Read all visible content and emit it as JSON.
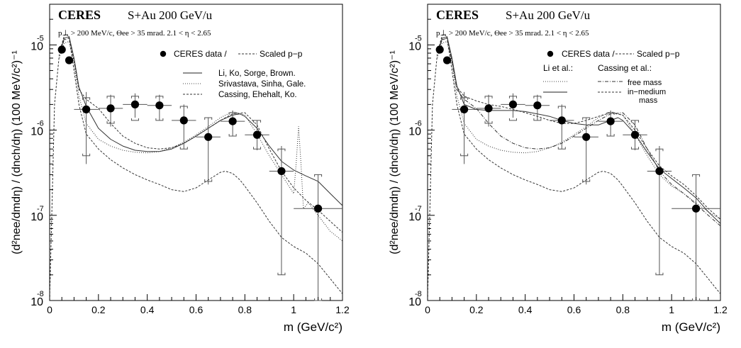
{
  "chart_data": [
    {
      "type": "line",
      "experiment": "CERES",
      "system": "S+Au 200 GeV/u",
      "cuts": "p⊥ > 200 MeV/c, Θee > 35 mrad. 2.1 < η < 2.65",
      "xlabel": "m (GeV/c²)",
      "ylabel": "(d²nee/dmdη) / (dnch/dη) (100 MeV/c²)⁻¹",
      "xlim": [
        0,
        1.2
      ],
      "ylim": [
        1e-08,
        3e-05
      ],
      "yscale": "log",
      "x_ticks": [
        "0",
        "0.2",
        "0.4",
        "0.6",
        "0.8",
        "1",
        "1.2"
      ],
      "y_ticks": [
        {
          "value": 1e-05,
          "base": "10",
          "exp": "-5"
        },
        {
          "value": 1e-06,
          "base": "10",
          "exp": "-6"
        },
        {
          "value": 1e-07,
          "base": "10",
          "exp": "-7"
        },
        {
          "value": 1e-08,
          "base": "10",
          "exp": "-8"
        }
      ],
      "legend": [
        {
          "label": "CERES data /",
          "marker": "dot"
        },
        {
          "label": "Scaled p−p",
          "style": "dashed"
        },
        {
          "label": "Li, Ko, Sorge, Brown.",
          "style": "solid"
        },
        {
          "label": "Srivastava, Sinha, Gale.",
          "style": "dotted"
        },
        {
          "label": "Cassing, Ehehalt, Ko.",
          "style": "dashed"
        }
      ],
      "data_points": [
        {
          "x": 0.05,
          "y": 8.8e-06,
          "xerr": 0.0,
          "ylo": 8.8e-06,
          "yhi": 8.8e-06
        },
        {
          "x": 0.08,
          "y": 6.6e-06,
          "xerr": 0.0,
          "ylo": 6.6e-06,
          "yhi": 6.6e-06
        },
        {
          "x": 0.15,
          "y": 1.75e-06,
          "xerr": 0.05,
          "ylo": 4e-07,
          "yhi": 2.8e-06,
          "cap_lo": 5e-07,
          "cap_hi": 2.4e-06
        },
        {
          "x": 0.25,
          "y": 1.8e-06,
          "xerr": 0.05,
          "ylo": 1.1e-06,
          "yhi": 2.6e-06,
          "cap_lo": 1.2e-06,
          "cap_hi": 2.5e-06
        },
        {
          "x": 0.35,
          "y": 2e-06,
          "xerr": 0.05,
          "ylo": 1.4e-06,
          "yhi": 2.7e-06,
          "cap_lo": 1.3e-06,
          "cap_hi": 2.5e-06
        },
        {
          "x": 0.45,
          "y": 1.95e-06,
          "xerr": 0.05,
          "ylo": 1.3e-06,
          "yhi": 2.6e-06,
          "cap_lo": 1.3e-06,
          "cap_hi": 2.5e-06
        },
        {
          "x": 0.55,
          "y": 1.3e-06,
          "xerr": 0.05,
          "ylo": 6e-07,
          "yhi": 2e-06,
          "cap_lo": 6e-07,
          "cap_hi": 1.9e-06
        },
        {
          "x": 0.65,
          "y": 8.3e-07,
          "xerr": 0.05,
          "ylo": 2.3e-07,
          "yhi": 1.4e-06,
          "cap_lo": 2.5e-07,
          "cap_hi": 1.4e-06
        },
        {
          "x": 0.75,
          "y": 1.27e-06,
          "xerr": 0.05,
          "ylo": 8.5e-07,
          "yhi": 1.7e-06,
          "cap_lo": 8.5e-07,
          "cap_hi": 1.6e-06
        },
        {
          "x": 0.85,
          "y": 8.8e-07,
          "xerr": 0.05,
          "ylo": 5.8e-07,
          "yhi": 1.3e-06,
          "cap_lo": 6e-07,
          "cap_hi": 1.3e-06
        },
        {
          "x": 0.95,
          "y": 3.3e-07,
          "xerr": 0.05,
          "ylo": 2e-08,
          "yhi": 6.5e-07,
          "cap_lo": 2e-08,
          "cap_hi": 6e-07
        },
        {
          "x": 1.1,
          "y": 1.2e-07,
          "xerr": 0.1,
          "ylo": 1e-08,
          "yhi": 3e-07,
          "cap_lo": 1e-08,
          "cap_hi": 3e-07
        }
      ],
      "series": [
        {
          "style": "dashed",
          "x": [
            0.0,
            0.02,
            0.04,
            0.06,
            0.07,
            0.08,
            0.1,
            0.12,
            0.15,
            0.2,
            0.25,
            0.3,
            0.35,
            0.4,
            0.45,
            0.5,
            0.55,
            0.6,
            0.65,
            0.7,
            0.72,
            0.75,
            0.78,
            0.8,
            0.85,
            0.9,
            0.95,
            1.0,
            1.05,
            1.1,
            1.15,
            1.2
          ],
          "y": [
            1e-08,
            2e-06,
            8e-06,
            1.3e-05,
            1.35e-05,
            1.2e-05,
            5e-06,
            2e-06,
            9e-07,
            6e-07,
            4.5e-07,
            3.6e-07,
            3e-07,
            2.6e-07,
            2.3e-07,
            2e-07,
            1.9e-07,
            2.1e-07,
            2.6e-07,
            3.2e-07,
            3.3e-07,
            3.1e-07,
            2.6e-07,
            2.2e-07,
            1.4e-07,
            8.5e-08,
            5.5e-08,
            4.3e-08,
            3.6e-08,
            2.7e-08,
            1.8e-08,
            1.2e-08
          ]
        },
        {
          "style": "solid",
          "x": [
            0.04,
            0.06,
            0.08,
            0.1,
            0.12,
            0.15,
            0.2,
            0.25,
            0.3,
            0.35,
            0.4,
            0.45,
            0.5,
            0.55,
            0.6,
            0.65,
            0.7,
            0.75,
            0.78,
            0.8,
            0.85,
            0.9,
            0.95,
            1.0,
            1.05,
            1.1,
            1.15,
            1.2
          ],
          "y": [
            8e-06,
            1.2e-05,
            1.25e-05,
            7e-06,
            3.2e-06,
            1.9e-06,
            1.05e-06,
            7.8e-07,
            6.5e-07,
            5.8e-07,
            5.6e-07,
            5.6e-07,
            6e-07,
            7e-07,
            8.5e-07,
            1.05e-06,
            1.3e-06,
            1.5e-06,
            1.55e-06,
            1.45e-06,
            1.05e-06,
            6.5e-07,
            4.3e-07,
            3.4e-07,
            2.9e-07,
            2.5e-07,
            1.8e-07,
            1.3e-07
          ]
        },
        {
          "style": "dotted",
          "x": [
            0.04,
            0.06,
            0.08,
            0.1,
            0.12,
            0.15,
            0.2,
            0.25,
            0.3,
            0.35,
            0.4,
            0.45,
            0.5,
            0.55,
            0.6,
            0.65,
            0.7,
            0.75,
            0.8,
            0.85,
            0.9,
            0.95,
            1.0,
            1.01,
            1.02,
            1.03,
            1.04,
            1.06,
            1.1,
            1.15,
            1.2
          ],
          "y": [
            7e-06,
            1.05e-05,
            1.1e-05,
            6e-06,
            2.5e-06,
            1.2e-06,
            7.8e-07,
            6.5e-07,
            5.8e-07,
            5.5e-07,
            5.4e-07,
            5.6e-07,
            6.2e-07,
            7.2e-07,
            8.8e-07,
            1.1e-06,
            1.4e-06,
            1.65e-06,
            1.5e-06,
            9e-07,
            5e-07,
            3e-07,
            1.8e-07,
            4e-07,
            1.1e-06,
            4e-07,
            1.2e-07,
            1.4e-07,
            1e-07,
            6.5e-08,
            5e-08
          ]
        },
        {
          "style": "dashed",
          "x": [
            0.04,
            0.06,
            0.08,
            0.1,
            0.12,
            0.15,
            0.2,
            0.25,
            0.3,
            0.35,
            0.4,
            0.45,
            0.5,
            0.55,
            0.6,
            0.65,
            0.7,
            0.75,
            0.8,
            0.85,
            0.9,
            0.95,
            1.0,
            1.05,
            1.1,
            1.15,
            1.2
          ],
          "y": [
            8e-06,
            1.15e-05,
            1.2e-05,
            6.5e-06,
            3e-06,
            2.3e-06,
            1.8e-06,
            1.2e-06,
            8.5e-07,
            7e-07,
            6.2e-07,
            6e-07,
            6.2e-07,
            7e-07,
            8.5e-07,
            1.05e-06,
            1.3e-06,
            1.55e-06,
            1.6e-06,
            1.15e-06,
            6e-07,
            3.3e-07,
            2.1e-07,
            1.5e-07,
            1.15e-07,
            8.5e-08,
            6.3e-08
          ]
        }
      ]
    },
    {
      "type": "line",
      "experiment": "CERES",
      "system": "S+Au 200 GeV/u",
      "cuts": "p⊥ > 200 MeV/c, Θee > 35 mrad. 2.1 < η < 2.65",
      "xlabel": "m (GeV/c²)",
      "ylabel": "(d²nee/dmdη) / (dnch/dη) (100 MeV/c²)⁻¹",
      "xlim": [
        0,
        1.2
      ],
      "ylim": [
        1e-08,
        3e-05
      ],
      "yscale": "log",
      "x_ticks": [
        "0",
        "0.2",
        "0.4",
        "0.6",
        "0.8",
        "1",
        "1.2"
      ],
      "y_ticks": [
        {
          "value": 1e-05,
          "base": "10",
          "exp": "-5"
        },
        {
          "value": 1e-06,
          "base": "10",
          "exp": "-6"
        },
        {
          "value": 1e-07,
          "base": "10",
          "exp": "-7"
        },
        {
          "value": 1e-08,
          "base": "10",
          "exp": "-8"
        }
      ],
      "legend": [
        {
          "label": "CERES data /",
          "marker": "dot"
        },
        {
          "label": "Scaled p−p",
          "style": "dashed"
        },
        {
          "label": "Li et al.:",
          "style": "header"
        },
        {
          "label": "Cassing et al.:",
          "style": "header"
        },
        {
          "label": "free mass",
          "style": "dotted / dashdot"
        },
        {
          "label": "in−medium",
          "style": "solid / dashed"
        },
        {
          "label": "mass",
          "style": "text"
        }
      ],
      "data_points": [
        {
          "x": 0.05,
          "y": 8.8e-06,
          "xerr": 0.0,
          "ylo": 8.8e-06,
          "yhi": 8.8e-06
        },
        {
          "x": 0.08,
          "y": 6.6e-06,
          "xerr": 0.0,
          "ylo": 6.6e-06,
          "yhi": 6.6e-06
        },
        {
          "x": 0.15,
          "y": 1.75e-06,
          "xerr": 0.05,
          "ylo": 4e-07,
          "yhi": 2.8e-06,
          "cap_lo": 5e-07,
          "cap_hi": 2.4e-06
        },
        {
          "x": 0.25,
          "y": 1.8e-06,
          "xerr": 0.05,
          "ylo": 1.1e-06,
          "yhi": 2.6e-06,
          "cap_lo": 1.2e-06,
          "cap_hi": 2.5e-06
        },
        {
          "x": 0.35,
          "y": 2e-06,
          "xerr": 0.05,
          "ylo": 1.4e-06,
          "yhi": 2.7e-06,
          "cap_lo": 1.3e-06,
          "cap_hi": 2.5e-06
        },
        {
          "x": 0.45,
          "y": 1.95e-06,
          "xerr": 0.05,
          "ylo": 1.3e-06,
          "yhi": 2.6e-06,
          "cap_lo": 1.3e-06,
          "cap_hi": 2.5e-06
        },
        {
          "x": 0.55,
          "y": 1.3e-06,
          "xerr": 0.05,
          "ylo": 6e-07,
          "yhi": 2e-06,
          "cap_lo": 6e-07,
          "cap_hi": 1.9e-06
        },
        {
          "x": 0.65,
          "y": 8.3e-07,
          "xerr": 0.05,
          "ylo": 2.3e-07,
          "yhi": 1.4e-06,
          "cap_lo": 2.5e-07,
          "cap_hi": 1.4e-06
        },
        {
          "x": 0.75,
          "y": 1.27e-06,
          "xerr": 0.05,
          "ylo": 8.5e-07,
          "yhi": 1.7e-06,
          "cap_lo": 8.5e-07,
          "cap_hi": 1.6e-06
        },
        {
          "x": 0.85,
          "y": 8.8e-07,
          "xerr": 0.05,
          "ylo": 5.8e-07,
          "yhi": 1.3e-06,
          "cap_lo": 6e-07,
          "cap_hi": 1.3e-06
        },
        {
          "x": 0.95,
          "y": 3.3e-07,
          "xerr": 0.05,
          "ylo": 2e-08,
          "yhi": 6.5e-07,
          "cap_lo": 2e-08,
          "cap_hi": 6e-07
        },
        {
          "x": 1.1,
          "y": 1.2e-07,
          "xerr": 0.1,
          "ylo": 1e-08,
          "yhi": 3e-07,
          "cap_lo": 1e-08,
          "cap_hi": 3e-07
        }
      ],
      "series": [
        {
          "style": "dashed",
          "x": [
            0.0,
            0.02,
            0.04,
            0.06,
            0.07,
            0.08,
            0.1,
            0.12,
            0.15,
            0.2,
            0.25,
            0.3,
            0.35,
            0.4,
            0.45,
            0.5,
            0.55,
            0.6,
            0.65,
            0.7,
            0.72,
            0.75,
            0.78,
            0.8,
            0.85,
            0.9,
            0.95,
            1.0,
            1.05,
            1.1,
            1.15,
            1.2
          ],
          "y": [
            1e-08,
            2e-06,
            8e-06,
            1.3e-05,
            1.35e-05,
            1.2e-05,
            5e-06,
            2e-06,
            9e-07,
            6e-07,
            4.5e-07,
            3.6e-07,
            3e-07,
            2.6e-07,
            2.3e-07,
            2e-07,
            1.9e-07,
            2.1e-07,
            2.6e-07,
            3.2e-07,
            3.3e-07,
            3.1e-07,
            2.6e-07,
            2.2e-07,
            1.4e-07,
            8.5e-08,
            5.5e-08,
            4.3e-08,
            3.6e-08,
            2.7e-08,
            1.8e-08,
            1.2e-08
          ]
        },
        {
          "style": "solid",
          "x": [
            0.04,
            0.06,
            0.08,
            0.1,
            0.12,
            0.15,
            0.2,
            0.25,
            0.3,
            0.35,
            0.4,
            0.45,
            0.5,
            0.55,
            0.6,
            0.65,
            0.7,
            0.75,
            0.78,
            0.8,
            0.85,
            0.9,
            0.95,
            1.0,
            1.05,
            1.1,
            1.15,
            1.2
          ],
          "y": [
            8e-06,
            1.2e-05,
            1.25e-05,
            7e-06,
            3.3e-06,
            2e-06,
            1.75e-06,
            1.7e-06,
            1.7e-06,
            1.7e-06,
            1.65e-06,
            1.55e-06,
            1.45e-06,
            1.3e-06,
            1.2e-06,
            1.15e-06,
            1.15e-06,
            1.3e-06,
            1.4e-06,
            1.3e-06,
            9e-07,
            5.5e-07,
            3.5e-07,
            2.7e-07,
            2.1e-07,
            1.6e-07,
            1.1e-07,
            8e-08
          ]
        },
        {
          "style": "dotted",
          "x": [
            0.04,
            0.06,
            0.08,
            0.1,
            0.12,
            0.15,
            0.2,
            0.25,
            0.3,
            0.35,
            0.4,
            0.45,
            0.5,
            0.55,
            0.6,
            0.65,
            0.7,
            0.75,
            0.8,
            0.85,
            0.9,
            0.95,
            1.0,
            1.05,
            1.1,
            1.15,
            1.2
          ],
          "y": [
            7e-06,
            1.05e-05,
            1.1e-05,
            6e-06,
            2.5e-06,
            1.2e-06,
            7.8e-07,
            6.5e-07,
            5.8e-07,
            5.5e-07,
            5.4e-07,
            5.6e-07,
            6.2e-07,
            7.2e-07,
            8.8e-07,
            1.1e-06,
            1.4e-06,
            1.65e-06,
            1.5e-06,
            9e-07,
            5e-07,
            3e-07,
            2.2e-07,
            1.8e-07,
            1.4e-07,
            1.1e-07,
            9e-08
          ]
        },
        {
          "style": "dashdot",
          "x": [
            0.04,
            0.06,
            0.08,
            0.1,
            0.12,
            0.15,
            0.2,
            0.25,
            0.3,
            0.35,
            0.4,
            0.45,
            0.5,
            0.55,
            0.6,
            0.65,
            0.7,
            0.75,
            0.8,
            0.85,
            0.9,
            0.95,
            1.0,
            1.05,
            1.1,
            1.15,
            1.2
          ],
          "y": [
            8e-06,
            1.15e-05,
            1.2e-05,
            6.5e-06,
            3e-06,
            2.3e-06,
            1.8e-06,
            1.2e-06,
            8.5e-07,
            7e-07,
            6.2e-07,
            6e-07,
            6.2e-07,
            7e-07,
            8.5e-07,
            1.05e-06,
            1.3e-06,
            1.55e-06,
            1.6e-06,
            1.15e-06,
            6e-07,
            3.3e-07,
            2.3e-07,
            1.8e-07,
            1.35e-07,
            1e-07,
            7.5e-08
          ]
        },
        {
          "style": "dashed",
          "x": [
            0.04,
            0.06,
            0.08,
            0.1,
            0.12,
            0.15,
            0.2,
            0.25,
            0.3,
            0.35,
            0.4,
            0.45,
            0.5,
            0.55,
            0.6,
            0.65,
            0.7,
            0.75,
            0.8,
            0.85,
            0.9,
            0.95,
            1.0,
            1.05,
            1.1,
            1.15,
            1.2
          ],
          "y": [
            8e-06,
            1.15e-05,
            1.2e-05,
            6.5e-06,
            3.2e-06,
            2.5e-06,
            2.2e-06,
            2e-06,
            1.9e-06,
            1.75e-06,
            1.6e-06,
            1.45e-06,
            1.3e-06,
            1.2e-06,
            1.2e-06,
            1.3e-06,
            1.45e-06,
            1.6e-06,
            1.5e-06,
            1e-06,
            6e-07,
            3.8e-07,
            2.9e-07,
            2.3e-07,
            1.7e-07,
            1.2e-07,
            9e-08
          ]
        }
      ]
    }
  ]
}
